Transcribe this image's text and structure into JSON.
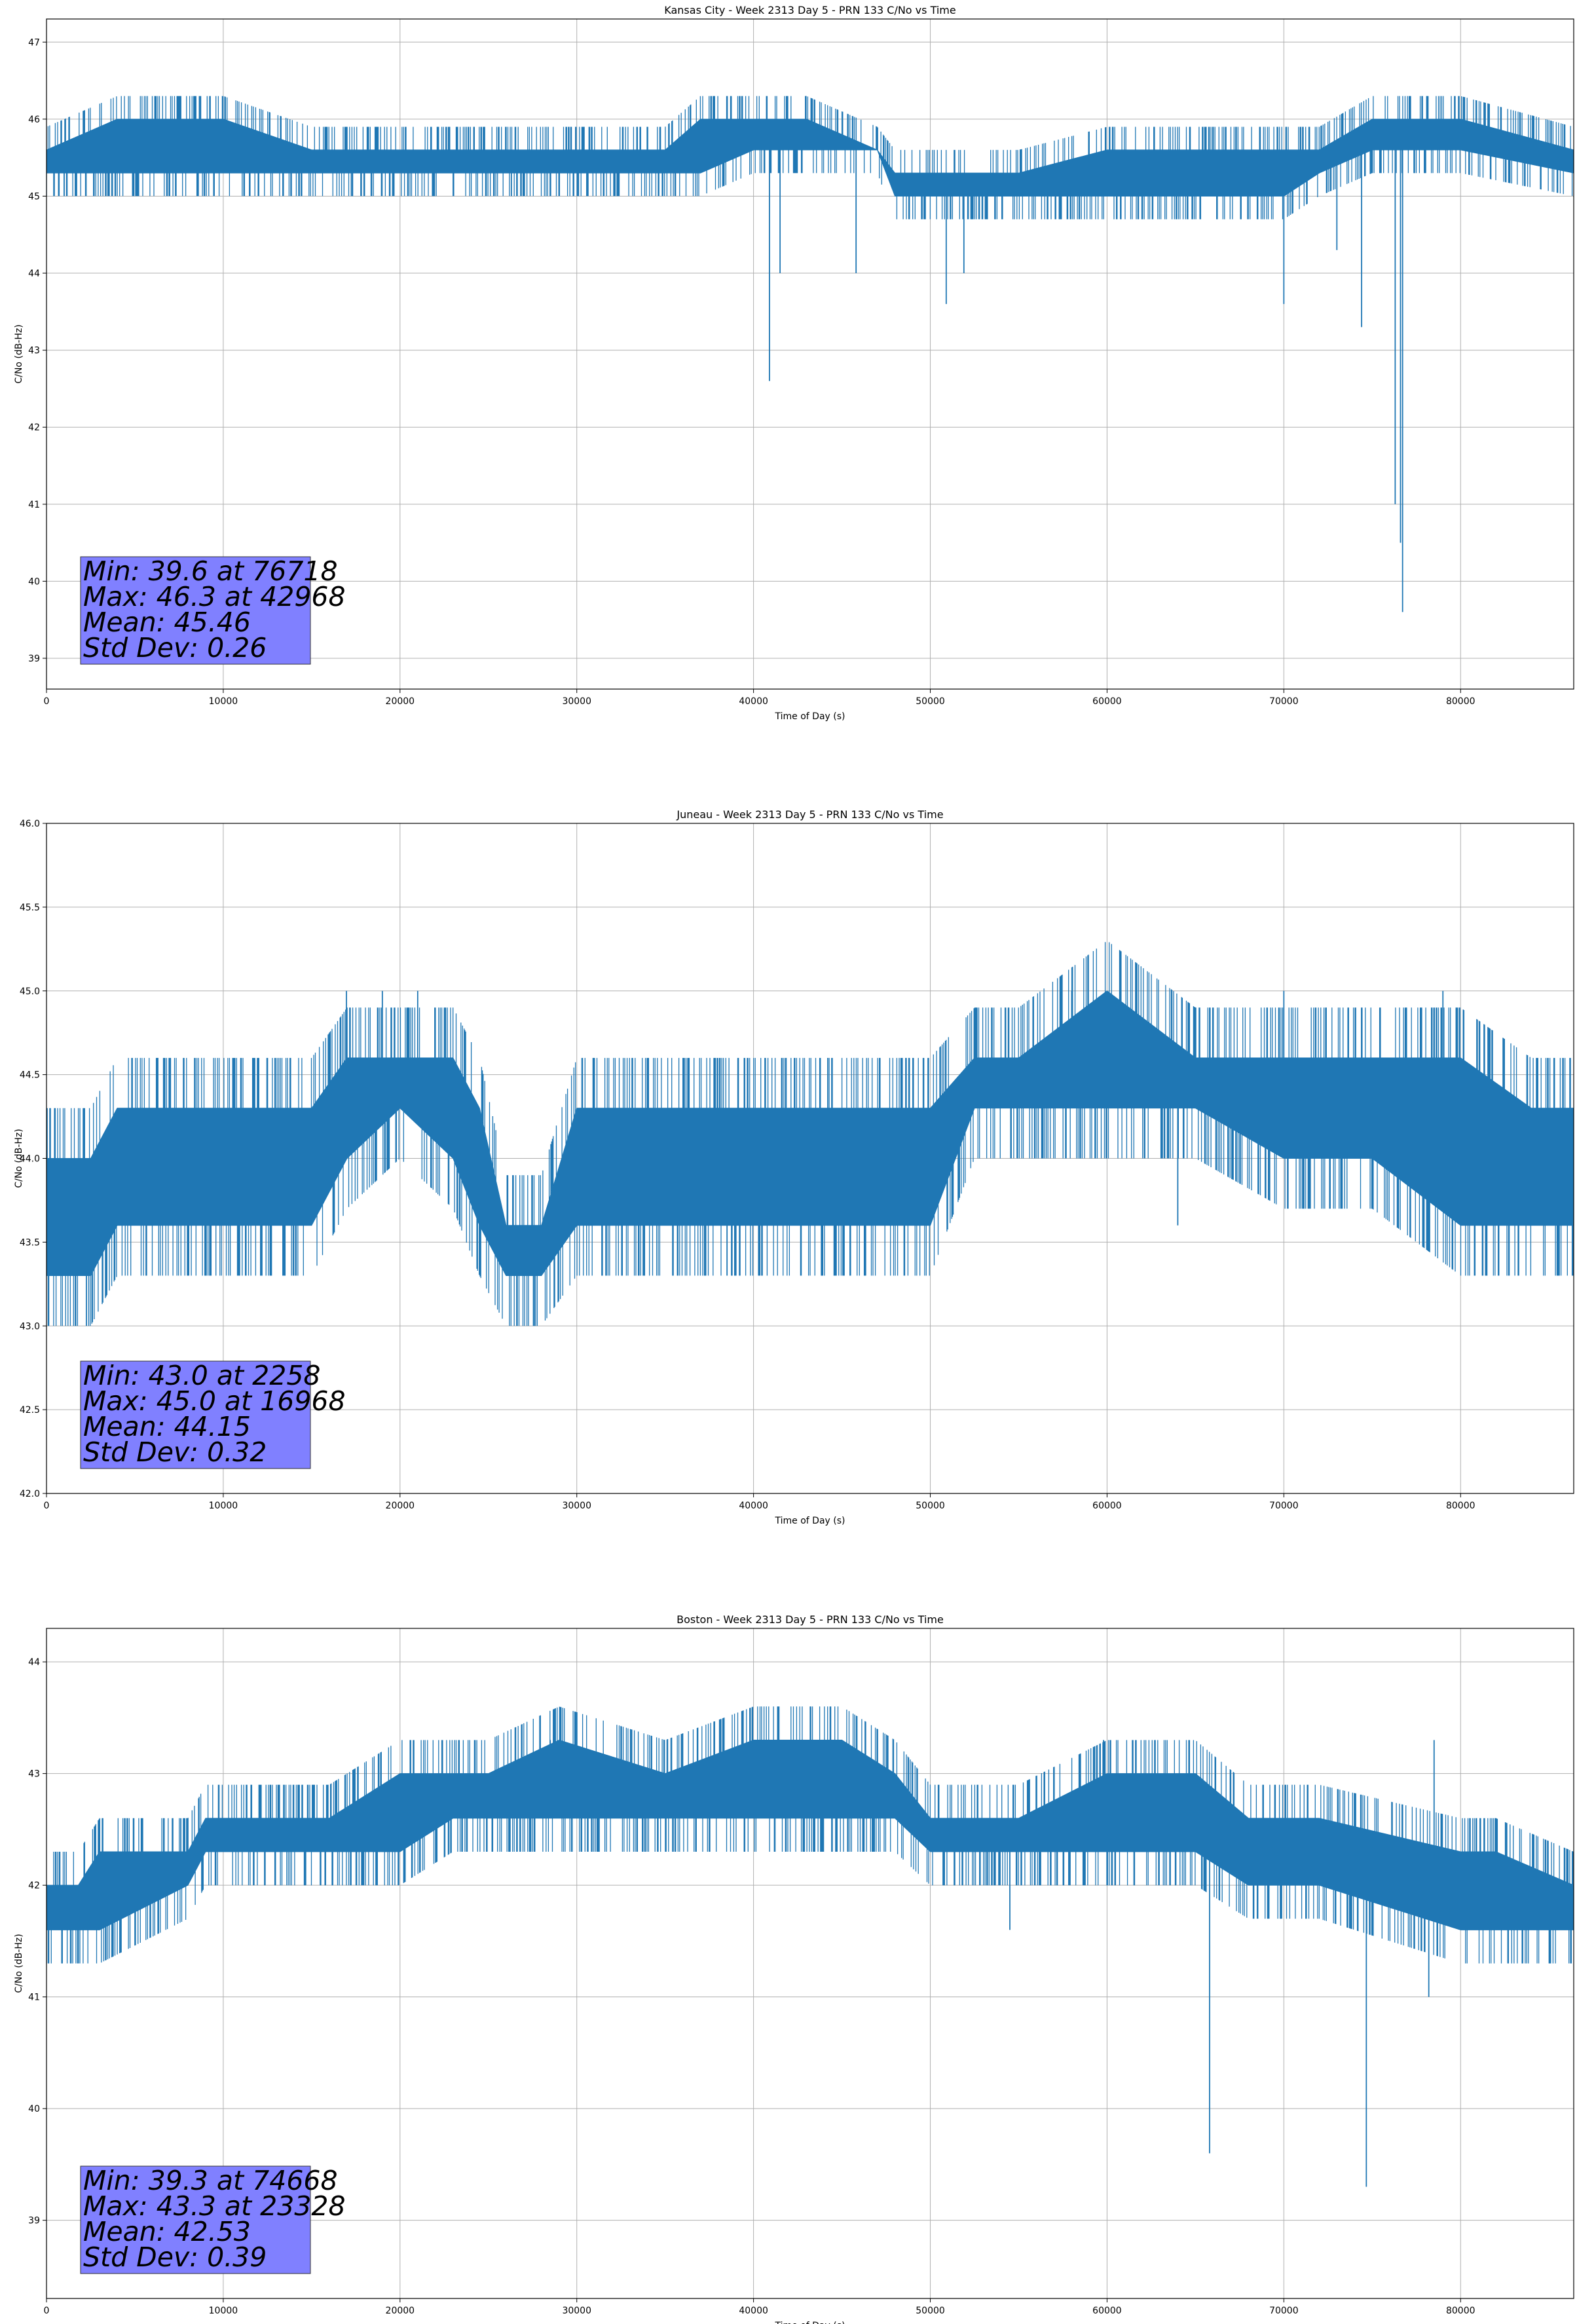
{
  "colors": {
    "series": "#1f77b4",
    "stats_box": "#8080ff",
    "grid": "#b0b0b0"
  },
  "chart_data": [
    {
      "type": "line",
      "title": "Kansas City - Week 2313 Day 5 - PRN 133 C/No vs Time",
      "xlabel": "Time of Day (s)",
      "ylabel": "C/No (dB-Hz)",
      "xlim": [
        0,
        86400
      ],
      "ylim": [
        38.6,
        47.3
      ],
      "xticks": [
        0,
        10000,
        20000,
        30000,
        40000,
        50000,
        60000,
        70000,
        80000
      ],
      "yticks": [
        39,
        40,
        41,
        42,
        43,
        44,
        45,
        46,
        47
      ],
      "ytick_decimals": 0,
      "grid": true,
      "band": {
        "x": [
          0,
          4000,
          10000,
          15000,
          20000,
          25000,
          30000,
          35000,
          37000,
          40000,
          43000,
          47000,
          48000,
          50000,
          55000,
          60000,
          65000,
          70000,
          72000,
          75000,
          80000,
          86400
        ],
        "low": [
          45.3,
          45.3,
          45.3,
          45.3,
          45.3,
          45.3,
          45.3,
          45.3,
          45.3,
          45.6,
          45.6,
          45.6,
          45.0,
          45.0,
          45.0,
          45.0,
          45.0,
          45.0,
          45.3,
          45.6,
          45.6,
          45.3
        ],
        "high": [
          45.6,
          46.0,
          46.0,
          45.6,
          45.6,
          45.6,
          45.6,
          45.6,
          46.0,
          46.0,
          46.0,
          45.6,
          45.3,
          45.3,
          45.3,
          45.6,
          45.6,
          45.6,
          45.6,
          46.0,
          46.0,
          45.6
        ]
      },
      "spikes": [
        [
          40900,
          42.6
        ],
        [
          41500,
          44.0
        ],
        [
          45800,
          44.0
        ],
        [
          50900,
          43.6
        ],
        [
          51900,
          44.0
        ],
        [
          70000,
          43.6
        ],
        [
          74400,
          43.3
        ],
        [
          76300,
          41.0
        ],
        [
          76600,
          40.5
        ],
        [
          76718,
          39.6
        ],
        [
          42968,
          46.3
        ],
        [
          1000,
          45.0
        ],
        [
          17300,
          45.0
        ],
        [
          26300,
          45.0
        ],
        [
          73000,
          44.3
        ]
      ],
      "stats": [
        "Min: 39.6 at 76718",
        "Max: 46.3 at 42968",
        "Mean: 45.46",
        "Std Dev: 0.26"
      ]
    },
    {
      "type": "line",
      "title": "Juneau - Week 2313 Day 5 - PRN 133 C/No vs Time",
      "xlabel": "Time of Day (s)",
      "ylabel": "C/No (dB-Hz)",
      "xlim": [
        0,
        86400
      ],
      "ylim": [
        42.0,
        46.0
      ],
      "xticks": [
        0,
        10000,
        20000,
        30000,
        40000,
        50000,
        60000,
        70000,
        80000
      ],
      "yticks": [
        42.0,
        42.5,
        43.0,
        43.5,
        44.0,
        44.5,
        45.0,
        45.5,
        46.0
      ],
      "ytick_decimals": 1,
      "grid": true,
      "band": {
        "x": [
          0,
          2500,
          4000,
          10000,
          15000,
          17000,
          20000,
          23000,
          24500,
          26000,
          28000,
          30000,
          35000,
          40000,
          45000,
          50000,
          52500,
          55000,
          60000,
          65000,
          70000,
          75000,
          80000,
          84000,
          86400
        ],
        "low": [
          43.3,
          43.3,
          43.6,
          43.6,
          43.6,
          44.0,
          44.3,
          44.0,
          43.6,
          43.3,
          43.3,
          43.6,
          43.6,
          43.6,
          43.6,
          43.6,
          44.3,
          44.3,
          44.3,
          44.3,
          44.0,
          44.0,
          43.6,
          43.6,
          43.6
        ],
        "high": [
          44.0,
          44.0,
          44.3,
          44.3,
          44.3,
          44.6,
          44.6,
          44.6,
          44.3,
          43.6,
          43.6,
          44.3,
          44.3,
          44.3,
          44.3,
          44.3,
          44.6,
          44.6,
          45.0,
          44.6,
          44.6,
          44.6,
          44.6,
          44.3,
          44.3
        ]
      },
      "spikes": [
        [
          2258,
          43.0
        ],
        [
          27600,
          43.0
        ],
        [
          38500,
          43.3
        ],
        [
          80800,
          43.3
        ],
        [
          64000,
          43.6
        ],
        [
          16968,
          45.0
        ],
        [
          19000,
          45.0
        ],
        [
          21000,
          45.0
        ],
        [
          58000,
          45.0
        ],
        [
          70000,
          45.0
        ],
        [
          79000,
          45.0
        ],
        [
          6300,
          44.6
        ],
        [
          44200,
          44.6
        ]
      ],
      "stats": [
        "Min: 43.0 at 2258",
        "Max: 45.0 at 16968",
        "Mean: 44.15",
        "Std Dev: 0.32"
      ]
    },
    {
      "type": "line",
      "title": "Boston - Week 2313 Day 5 - PRN 133 C/No vs Time",
      "xlabel": "Time of Day (s)",
      "ylabel": "C/No (dB-Hz)",
      "xlim": [
        0,
        86400
      ],
      "ylim": [
        38.3,
        44.3
      ],
      "xticks": [
        0,
        10000,
        20000,
        30000,
        40000,
        50000,
        60000,
        70000,
        80000
      ],
      "yticks": [
        39,
        40,
        41,
        42,
        43,
        44
      ],
      "ytick_decimals": 0,
      "grid": true,
      "band": {
        "x": [
          0,
          1800,
          3000,
          8000,
          9000,
          14000,
          16000,
          20000,
          23000,
          25000,
          29000,
          35000,
          40000,
          45000,
          48000,
          50000,
          55000,
          60000,
          65000,
          68000,
          72000,
          80000,
          82000,
          86400
        ],
        "low": [
          41.6,
          41.6,
          41.6,
          42.0,
          42.3,
          42.3,
          42.3,
          42.3,
          42.6,
          42.6,
          42.6,
          42.6,
          42.6,
          42.6,
          42.6,
          42.3,
          42.3,
          42.3,
          42.3,
          42.0,
          42.0,
          41.6,
          41.6,
          41.6
        ],
        "high": [
          42.0,
          42.0,
          42.3,
          42.3,
          42.6,
          42.6,
          42.6,
          43.0,
          43.0,
          43.0,
          43.3,
          43.0,
          43.3,
          43.3,
          43.0,
          42.6,
          42.6,
          43.0,
          43.0,
          42.6,
          42.6,
          42.3,
          42.3,
          42.0
        ]
      },
      "spikes": [
        [
          1800,
          41.3
        ],
        [
          54500,
          41.6
        ],
        [
          65800,
          39.6
        ],
        [
          74668,
          39.3
        ],
        [
          78200,
          41.0
        ],
        [
          23328,
          43.3
        ],
        [
          28500,
          43.3
        ],
        [
          78500,
          43.3
        ],
        [
          59800,
          43.3
        ],
        [
          7600,
          42.6
        ],
        [
          82000,
          42.6
        ]
      ],
      "stats": [
        "Min: 39.3 at 74668",
        "Max: 43.3 at 23328",
        "Mean: 42.53",
        "Std Dev: 0.39"
      ]
    }
  ]
}
